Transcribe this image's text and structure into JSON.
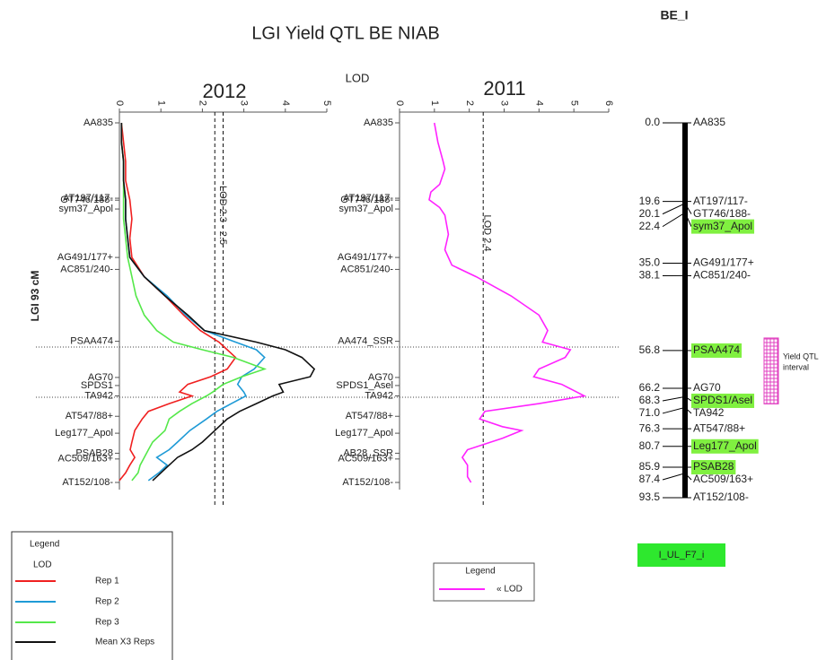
{
  "title": "LGI Yield QTL BE NIAB",
  "map_title": "BE_I",
  "lod_label": "LOD",
  "group_label": "LGI 93 cM",
  "tag": "I_UL_F7_i",
  "chart_data": [
    {
      "type": "line",
      "orientation": "vertical",
      "title": "2012",
      "x": [
        0,
        5,
        10,
        15,
        20,
        25,
        30,
        35,
        40,
        45,
        50,
        54,
        57,
        59,
        61,
        64,
        66,
        68,
        70,
        71,
        73,
        75,
        77,
        80,
        83,
        85,
        87,
        89,
        91,
        93
      ],
      "xlim": [
        0,
        93.5
      ],
      "ylim": [
        0,
        5
      ],
      "yticks": [
        0,
        1,
        2,
        3,
        4,
        5
      ],
      "threshold": [
        2.3,
        2.5
      ],
      "threshold_label": "LOD 2.3 - 2.5",
      "markers": [
        "AA835",
        "AT197/117-",
        "GT746/188-",
        "sym37_Apol",
        "AG491/177+",
        "AC851/240-",
        "PSAA474",
        "AG70",
        "SPDS1",
        "TA942",
        "AT547/88+",
        "Leg177_Apol",
        "PSAB28",
        "AC509/163+",
        "AT152/108-"
      ],
      "legend": {
        "title": "Legend",
        "subtitle": "LOD"
      },
      "series": [
        {
          "name": "Rep 1",
          "color": "#f02020",
          "values": [
            0.05,
            0.1,
            0.15,
            0.15,
            0.25,
            0.3,
            0.25,
            0.3,
            0.6,
            1.1,
            1.55,
            1.95,
            2.4,
            2.6,
            2.8,
            2.6,
            2.2,
            1.65,
            1.45,
            1.75,
            1.2,
            0.7,
            0.55,
            0.37,
            0.3,
            0.26,
            0.37,
            0.25,
            0.15,
            0
          ]
        },
        {
          "name": "Rep 2",
          "color": "#1e9ad6",
          "values": [
            0.05,
            0.05,
            0.1,
            0.1,
            0.15,
            0.15,
            0.2,
            0.25,
            0.6,
            1.15,
            1.6,
            2.05,
            2.8,
            3.3,
            3.5,
            3.25,
            2.95,
            2.85,
            3.0,
            3.05,
            2.7,
            2.35,
            2.1,
            1.7,
            1.4,
            1.2,
            0.9,
            1.15,
            0.95,
            0.7
          ]
        },
        {
          "name": "Rep 3",
          "color": "#55e84a",
          "values": [
            0.05,
            0.05,
            0.1,
            0.1,
            0.1,
            0.1,
            0.15,
            0.2,
            0.3,
            0.4,
            0.6,
            0.9,
            1.3,
            2.0,
            2.75,
            3.5,
            2.95,
            2.5,
            2.25,
            2.1,
            1.75,
            1.45,
            1.2,
            1.1,
            0.8,
            0.7,
            0.6,
            0.5,
            0.45,
            0.3
          ]
        },
        {
          "name": "Mean X3 Reps",
          "color": "#111111",
          "values": [
            0.05,
            0.05,
            0.1,
            0.1,
            0.15,
            0.15,
            0.2,
            0.25,
            0.6,
            1.1,
            1.65,
            2.05,
            3.3,
            4.0,
            4.4,
            4.7,
            4.6,
            3.85,
            3.95,
            3.7,
            3.3,
            2.9,
            2.6,
            2.3,
            2.0,
            1.75,
            1.4,
            1.2,
            1.0,
            0.8
          ]
        }
      ]
    },
    {
      "type": "line",
      "orientation": "vertical",
      "title": "2011",
      "x": [
        0,
        5,
        10,
        12,
        16,
        18,
        20,
        22,
        24,
        29,
        33,
        37,
        40,
        45,
        50,
        54,
        57,
        59,
        61,
        64,
        66,
        68,
        71,
        73,
        75,
        77,
        79,
        80,
        82,
        85,
        87,
        89,
        92,
        93.5
      ],
      "xlim": [
        0,
        93.5
      ],
      "ylim": [
        0,
        6
      ],
      "yticks": [
        0,
        1,
        2,
        3,
        4,
        5,
        6
      ],
      "threshold": [
        2.4
      ],
      "threshold_label": "LOD 2.4",
      "markers": [
        "AA835",
        "AT197/117-",
        "GT746/188-",
        "sym37_Apol",
        "AG491/177+",
        "AC851/240-",
        "AA474_SSR",
        "AG70",
        "SPDS1_Asel",
        "TA942",
        "AT547/88+",
        "Leg177_Apol",
        "AB28_SSR",
        "AC509/163+",
        "AT152/108-"
      ],
      "legend": {
        "title": "Legend"
      },
      "series": [
        {
          "name": "« LOD",
          "color": "#ff22ff",
          "values": [
            1.0,
            1.1,
            1.25,
            1.3,
            1.15,
            0.9,
            0.85,
            1.15,
            1.3,
            1.4,
            1.3,
            1.5,
            2.2,
            3.2,
            4.0,
            4.25,
            4.1,
            4.9,
            4.75,
            4.0,
            3.85,
            4.65,
            5.3,
            4.0,
            2.45,
            2.3,
            2.95,
            3.5,
            2.95,
            1.95,
            1.8,
            1.95,
            1.95,
            2.05
          ]
        }
      ]
    }
  ],
  "genetic_map": {
    "markers": [
      "AA835",
      "AT197/117-",
      "GT746/188-",
      "sym37_Apol",
      "AG491/177+",
      "AC851/240-",
      "PSAA474",
      "AG70",
      "SPDS1/Asel",
      "TA942",
      "AT547/88+",
      "Leg177_Apol",
      "PSAB28",
      "AC509/163+",
      "AT152/108-"
    ],
    "values": [
      0,
      19.6,
      20.1,
      22.4,
      35,
      38.1,
      56.8,
      66.2,
      68.3,
      71,
      76.3,
      80.7,
      85.9,
      87.4,
      93.5
    ],
    "value_labels": [
      "0.0",
      "19.6",
      "20.1",
      "22.4",
      "35.0",
      "38.1",
      "56.8",
      "66.2",
      "68.3",
      "71.0",
      "76.3",
      "80.7",
      "85.9",
      "87.4",
      "93.5"
    ],
    "highlighted": [
      false,
      false,
      false,
      true,
      false,
      false,
      true,
      false,
      true,
      false,
      false,
      true,
      true,
      false,
      false
    ],
    "highlight_color": "#80f040",
    "qtl_interval": {
      "range": [
        56.8,
        71
      ],
      "label": [
        "Yield QTL",
        "interval"
      ],
      "color": "#e040c0"
    }
  }
}
